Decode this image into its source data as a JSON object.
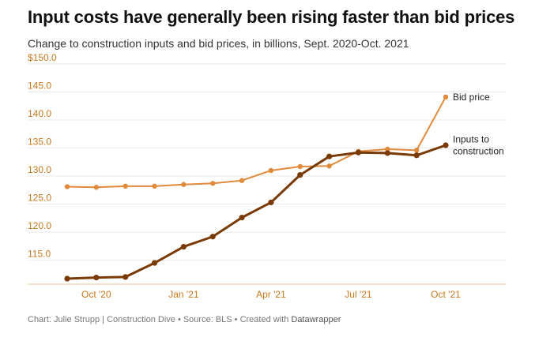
{
  "header": {
    "title": "Input costs have generally been rising faster than bid prices",
    "subtitle": "Change to construction inputs and bid prices, in billions, Sept. 2020-Oct. 2021"
  },
  "footer": {
    "credit": "Chart: Julie Strupp | Construction Dive • Source: BLS • Created with ",
    "tool": "Datawrapper"
  },
  "chart_data": {
    "type": "line",
    "title": "Input costs have generally been rising faster than bid prices",
    "subtitle": "Change to construction inputs and bid prices, in billions, Sept. 2020-Oct. 2021",
    "x": [
      "2020-09",
      "2020-10",
      "2020-11",
      "2020-12",
      "2021-01",
      "2021-02",
      "2021-03",
      "2021-04",
      "2021-05",
      "2021-06",
      "2021-07",
      "2021-08",
      "2021-09",
      "2021-10"
    ],
    "x_tick_labels": [
      "Oct '20",
      "Jan '21",
      "Apr '21",
      "Jul '21",
      "Oct '21"
    ],
    "x_tick_positions": [
      "2020-10",
      "2021-01",
      "2021-04",
      "2021-07",
      "2021-10"
    ],
    "y_tick_labels": [
      "$150.0",
      "145.0",
      "140.0",
      "135.0",
      "130.0",
      "125.0",
      "120.0",
      "115.0"
    ],
    "y_ticks": [
      150,
      145,
      140,
      135,
      130,
      125,
      120,
      115
    ],
    "ylim": [
      111,
      150
    ],
    "grid": true,
    "series": [
      {
        "name": "Bid price",
        "color": "#e08a3c",
        "values": [
          128.1,
          128.0,
          128.2,
          128.2,
          128.5,
          128.7,
          129.2,
          131.0,
          131.7,
          131.8,
          134.4,
          134.8,
          134.6,
          144.1
        ]
      },
      {
        "name": "Inputs to construction",
        "color": "#7a3a05",
        "values": [
          111.7,
          111.9,
          112.0,
          114.5,
          117.4,
          119.2,
          122.6,
          125.3,
          130.2,
          133.5,
          134.2,
          134.1,
          133.7,
          135.5
        ]
      }
    ],
    "series_label_lines": [
      [
        "Bid price"
      ],
      [
        "Inputs to",
        "construction"
      ]
    ]
  }
}
